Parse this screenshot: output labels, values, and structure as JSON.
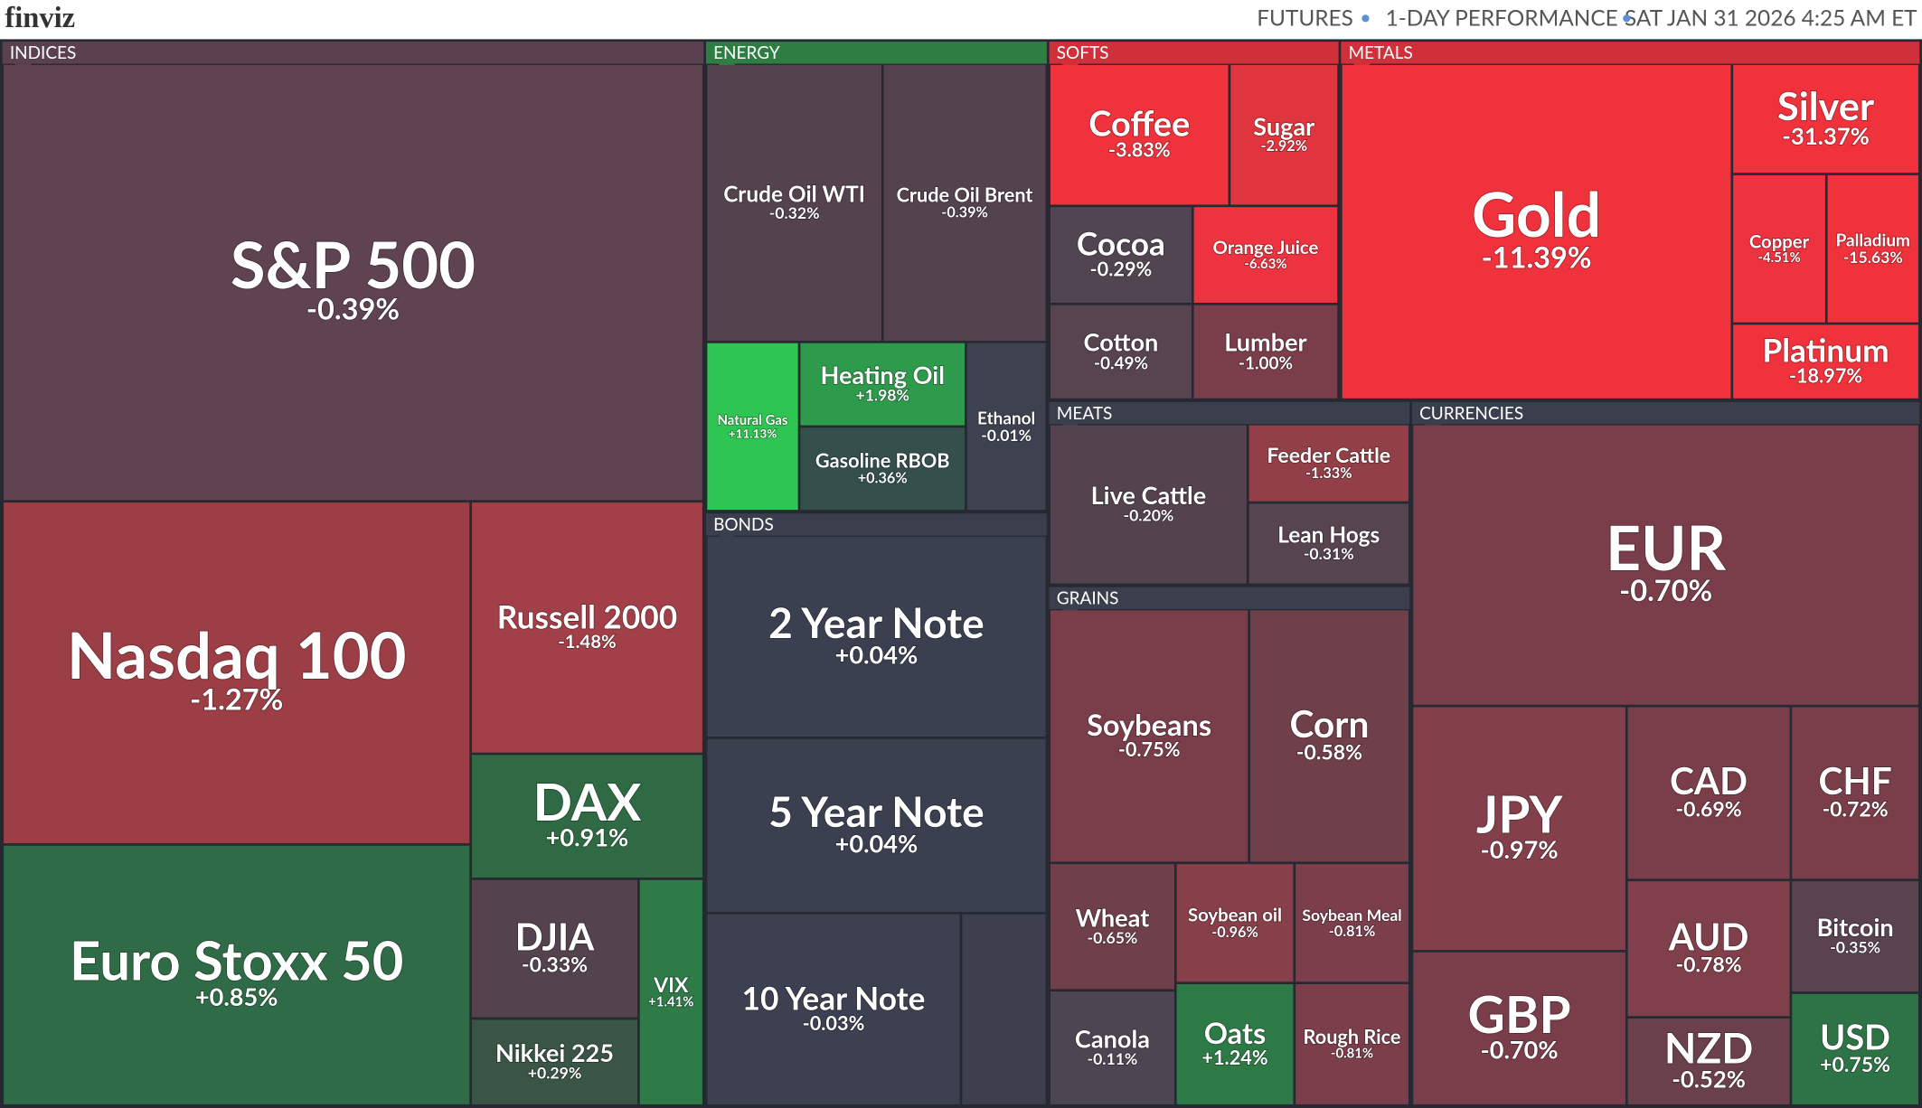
{
  "header": {
    "logo": "finviz",
    "items": [
      "FUTURES",
      "1-DAY PERFORMANCE",
      "SAT JAN 31 2026 4:25 AM ET"
    ]
  },
  "groups": [
    {
      "name": "INDICES",
      "tiles": [
        {
          "name": "S&P 500",
          "change": "-0.39%"
        },
        {
          "name": "Nasdaq 100",
          "change": "-1.27%"
        },
        {
          "name": "Russell 2000",
          "change": "-1.48%"
        },
        {
          "name": "DAX",
          "change": "+0.91%"
        },
        {
          "name": "Euro Stoxx 50",
          "change": "+0.85%"
        },
        {
          "name": "DJIA",
          "change": "-0.33%"
        },
        {
          "name": "Nikkei 225",
          "change": "+0.29%"
        },
        {
          "name": "VIX",
          "change": "+1.41%"
        }
      ]
    },
    {
      "name": "ENERGY",
      "tiles": [
        {
          "name": "Crude Oil WTI",
          "change": "-0.32%"
        },
        {
          "name": "Crude Oil Brent",
          "change": "-0.39%"
        },
        {
          "name": "Natural Gas",
          "change": "+11.13%"
        },
        {
          "name": "Heating Oil",
          "change": "+1.98%"
        },
        {
          "name": "Gasoline RBOB",
          "change": "+0.36%"
        },
        {
          "name": "Ethanol",
          "change": "-0.01%"
        }
      ]
    },
    {
      "name": "BONDS",
      "tiles": [
        {
          "name": "2 Year Note",
          "change": "+0.04%"
        },
        {
          "name": "5 Year Note",
          "change": "+0.04%"
        },
        {
          "name": "10 Year Note",
          "change": "-0.03%"
        }
      ]
    },
    {
      "name": "SOFTS",
      "tiles": [
        {
          "name": "Coffee",
          "change": "-3.83%"
        },
        {
          "name": "Sugar",
          "change": "-2.92%"
        },
        {
          "name": "Cocoa",
          "change": "-0.29%"
        },
        {
          "name": "Orange Juice",
          "change": "-6.63%"
        },
        {
          "name": "Cotton",
          "change": "-0.49%"
        },
        {
          "name": "Lumber",
          "change": "-1.00%"
        }
      ]
    },
    {
      "name": "METALS",
      "tiles": [
        {
          "name": "Gold",
          "change": "-11.39%"
        },
        {
          "name": "Silver",
          "change": "-31.37%"
        },
        {
          "name": "Copper",
          "change": "-4.51%"
        },
        {
          "name": "Palladium",
          "change": "-15.63%"
        },
        {
          "name": "Platinum",
          "change": "-18.97%"
        }
      ]
    },
    {
      "name": "MEATS",
      "tiles": [
        {
          "name": "Live Cattle",
          "change": "-0.20%"
        },
        {
          "name": "Feeder Cattle",
          "change": "-1.33%"
        },
        {
          "name": "Lean Hogs",
          "change": "-0.31%"
        }
      ]
    },
    {
      "name": "GRAINS",
      "tiles": [
        {
          "name": "Soybeans",
          "change": "-0.75%"
        },
        {
          "name": "Corn",
          "change": "-0.58%"
        },
        {
          "name": "Wheat",
          "change": "-0.65%"
        },
        {
          "name": "Soybean oil",
          "change": "-0.96%"
        },
        {
          "name": "Soybean Meal",
          "change": "-0.81%"
        },
        {
          "name": "Canola",
          "change": "-0.11%"
        },
        {
          "name": "Oats",
          "change": "+1.24%"
        },
        {
          "name": "Rough Rice",
          "change": "-0.81%"
        }
      ]
    },
    {
      "name": "CURRENCIES",
      "tiles": [
        {
          "name": "EUR",
          "change": "-0.70%"
        },
        {
          "name": "JPY",
          "change": "-0.97%"
        },
        {
          "name": "GBP",
          "change": "-0.70%"
        },
        {
          "name": "CAD",
          "change": "-0.69%"
        },
        {
          "name": "CHF",
          "change": "-0.72%"
        },
        {
          "name": "AUD",
          "change": "-0.78%"
        },
        {
          "name": "NZD",
          "change": "-0.52%"
        },
        {
          "name": "Bitcoin",
          "change": "-0.35%"
        },
        {
          "name": "USD",
          "change": "+0.75%"
        }
      ]
    }
  ]
}
